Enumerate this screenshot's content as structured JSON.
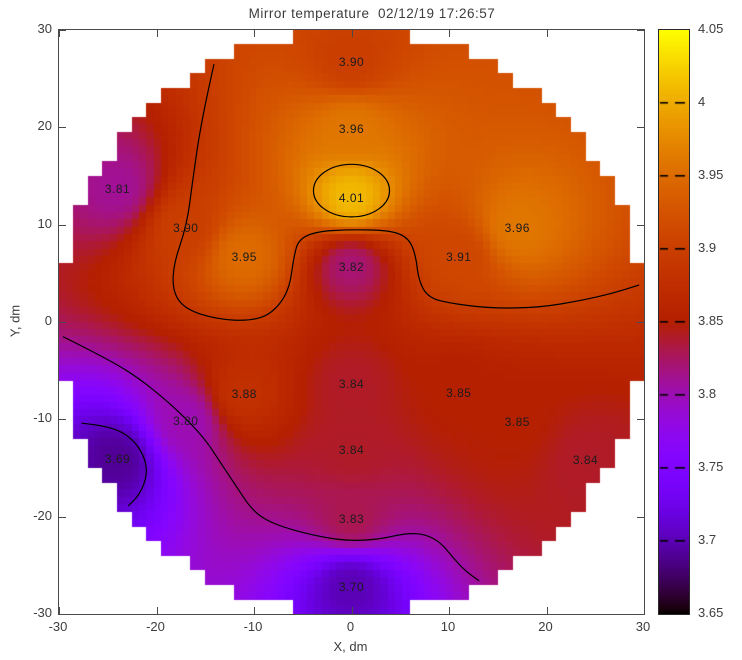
{
  "title": "Mirror temperature  02/12/19 17:26:57",
  "chart_data": {
    "type": "heatmap",
    "title": "Mirror temperature  02/12/19 17:26:57",
    "xlabel": "X, dm",
    "ylabel": "Y, dm",
    "xlim": [
      -30,
      30
    ],
    "ylim": [
      -30,
      30
    ],
    "xtick_labels": [
      "-30",
      "-20",
      "-10",
      "0",
      "10",
      "20",
      "30"
    ],
    "ytick_labels": [
      "-30",
      "-20",
      "-10",
      "0",
      "10",
      "20",
      "30"
    ],
    "grid": "off",
    "domain": {
      "shape": "circle",
      "radius_dm": 30,
      "cell_dm": 1.5
    },
    "sensors": [
      {
        "x": 0,
        "y": 26.7,
        "label": "3.90"
      },
      {
        "x": 0,
        "y": 19.8,
        "label": "3.96"
      },
      {
        "x": -24,
        "y": 13.7,
        "label": "3.81"
      },
      {
        "x": 0,
        "y": 12.7,
        "label": "4.01"
      },
      {
        "x": -17,
        "y": 9.7,
        "label": "3.90"
      },
      {
        "x": 17,
        "y": 9.7,
        "label": "3.96"
      },
      {
        "x": -11,
        "y": 6.7,
        "label": "3.95"
      },
      {
        "x": 0,
        "y": 5.7,
        "label": "3.82"
      },
      {
        "x": 11,
        "y": 6.7,
        "label": "3.91"
      },
      {
        "x": -11,
        "y": -7.4,
        "label": "3.88"
      },
      {
        "x": 0,
        "y": -6.4,
        "label": "3.84"
      },
      {
        "x": 11,
        "y": -7.3,
        "label": "3.85"
      },
      {
        "x": -17,
        "y": -10.2,
        "label": "3.80"
      },
      {
        "x": 17,
        "y": -10.3,
        "label": "3.85"
      },
      {
        "x": -24,
        "y": -14.1,
        "label": "3.69"
      },
      {
        "x": 0,
        "y": -13.2,
        "label": "3.84"
      },
      {
        "x": 24,
        "y": -14.2,
        "label": "3.84"
      },
      {
        "x": 0,
        "y": -20.2,
        "label": "3.83"
      },
      {
        "x": 0,
        "y": -27.2,
        "label": "3.70"
      }
    ],
    "contours": [
      {
        "level": 4.0,
        "type": "ellipse",
        "cx": 0,
        "cy": 13.5,
        "rx": 3.9,
        "ry": 2.7
      },
      {
        "level": 3.9,
        "type": "line",
        "points": [
          [
            -14.1,
            26.5
          ],
          [
            -15.4,
            20.7
          ],
          [
            -16.3,
            14.5
          ],
          [
            -16.9,
            9.9
          ],
          [
            -18.3,
            5.8
          ],
          [
            -18.3,
            3.0
          ],
          [
            -17.0,
            1.3
          ],
          [
            -13.9,
            0.3
          ],
          [
            -10.3,
            0.1
          ],
          [
            -8.1,
            0.9
          ],
          [
            -6.4,
            3.2
          ],
          [
            -5.9,
            6.8
          ],
          [
            -5.4,
            8.5
          ],
          [
            -3.6,
            9.3
          ],
          [
            0.0,
            9.5
          ],
          [
            4.1,
            9.4
          ],
          [
            5.9,
            8.6
          ],
          [
            6.6,
            6.8
          ],
          [
            6.9,
            4.2
          ],
          [
            7.9,
            2.5
          ],
          [
            10.2,
            1.9
          ],
          [
            14.3,
            1.4
          ],
          [
            19.4,
            1.5
          ],
          [
            23.5,
            2.2
          ],
          [
            26.6,
            2.9
          ],
          [
            29.5,
            3.8
          ]
        ]
      },
      {
        "level": 3.8,
        "type": "line",
        "points": [
          [
            -29.6,
            -1.5
          ],
          [
            -26.2,
            -3.2
          ],
          [
            -22.6,
            -5.2
          ],
          [
            -19.5,
            -7.6
          ],
          [
            -16.9,
            -10.0
          ],
          [
            -14.9,
            -12.2
          ],
          [
            -13.4,
            -14.5
          ],
          [
            -11.8,
            -16.9
          ],
          [
            -10.5,
            -18.9
          ],
          [
            -9.1,
            -20.2
          ],
          [
            -6.7,
            -21.2
          ],
          [
            -3.1,
            -22.1
          ],
          [
            0.0,
            -22.5
          ],
          [
            3.0,
            -22.3
          ],
          [
            5.6,
            -21.7
          ],
          [
            7.6,
            -21.8
          ],
          [
            9.2,
            -22.7
          ],
          [
            10.4,
            -24.2
          ],
          [
            11.7,
            -25.6
          ],
          [
            13.1,
            -26.6
          ]
        ]
      },
      {
        "level": 3.7,
        "type": "line",
        "points": [
          [
            -27.7,
            -10.4
          ],
          [
            -24.7,
            -10.7
          ],
          [
            -22.4,
            -12.0
          ],
          [
            -21.1,
            -14.1
          ],
          [
            -21.0,
            -16.0
          ],
          [
            -21.8,
            -17.8
          ],
          [
            -22.9,
            -18.9
          ]
        ]
      }
    ],
    "colorbar": {
      "min": 3.65,
      "max": 4.05,
      "tick_labels_top_to_bottom": [
        "4.05",
        "4",
        "3.95",
        "3.9",
        "3.85",
        "3.8",
        "3.75",
        "3.7",
        "3.65"
      ],
      "palette": "gnuplot rgbformulae 7,5,15 (black - violet - magenta - dark red - orange - yellow)",
      "palette_key_colors": {
        "3.65": "#000000",
        "3.70": "#5a00b4",
        "3.75": "#8004ff",
        "3.80": "#9c0db4",
        "3.85": "#b42000",
        "3.90": "#ca3e00",
        "3.95": "#dd6b00",
        "4.00": "#efab00",
        "4.05": "#ffff00"
      }
    },
    "legend": "none"
  },
  "colors": {
    "background": "#ffffff",
    "axis": "#4a4a4a",
    "tick_text": "#3d3d3d",
    "sensor_label_text": "#1c1c1c",
    "contour_line": "#000000"
  }
}
